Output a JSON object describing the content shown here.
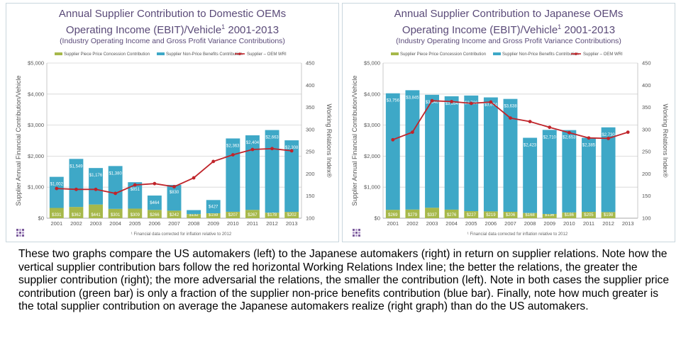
{
  "caption": "These two graphs compare the US automakers (left) to the Japanese automakers (right) in return on supplier relations. Note how the vertical supplier contribution bars follow the red horizontal Working Relations Index line; the better the relations, the greater the supplier contribution (right); the more adversarial the relations, the smaller the contribution (left).  Note in both cases the supplier price contribution (green bar) is only a fraction of the supplier non-price benefits contribution (blue bar).  Finally, note how much greater is the total supplier contribution on average the Japanese automakers realize (right graph) than do the US automakers.",
  "colors": {
    "price_bar": "#a6b84a",
    "nonprice_bar": "#3ea8c7",
    "wri_line": "#c0242a",
    "title": "#5a4a78",
    "grid": "#d4d4d4"
  },
  "chart_data": [
    {
      "type": "bar",
      "title": "Annual Supplier Contribution to Domestic OEMs",
      "title2": "Operating Income (EBIT)/Vehicle",
      "title2_sup": "1",
      "title2_years": "2001-2013",
      "subtitle": "(Industry Operating Income and Gross Profit Variance Contributions)",
      "legend": [
        "Supplier Piece Price Concession Contribution",
        "Supplier Non-Price Benefits Contribution",
        "Supplier – OEM WRI"
      ],
      "ylabel": "Supplier Annual Financial Contribution/Vehicle",
      "y2label": "Working Relations Index®",
      "footnote": "¹ Financial data corrected for inflation relative to 2012",
      "ylim": [
        0,
        5000
      ],
      "y2lim": [
        100,
        450
      ],
      "yticks": [
        "$0",
        "$1,000",
        "$2,000",
        "$3,000",
        "$4,000",
        "$5,000"
      ],
      "y2ticks": [
        "100",
        "150",
        "200",
        "250",
        "300",
        "350",
        "400",
        "450"
      ],
      "categories": [
        "2001",
        "2002",
        "2003",
        "2004",
        "2005",
        "2006",
        "2007",
        "2008",
        "2009",
        "2010",
        "2011",
        "2012",
        "2013"
      ],
      "series": [
        {
          "name": "Supplier Piece Price Concession Contribution",
          "values": [
            331,
            362,
            441,
            301,
            309,
            266,
            242,
            132,
            159,
            207,
            267,
            178,
            202
          ],
          "labels": [
            "$331",
            "$362",
            "$441",
            "$301",
            "$309",
            "$266",
            "$242",
            "$132",
            "$159",
            "$207",
            "$267",
            "$178",
            "$202"
          ]
        },
        {
          "name": "Supplier Non-Price Benefits Contribution",
          "values": [
            1002,
            1549,
            1176,
            1380,
            851,
            464,
            830,
            129,
            427,
            2363,
            2404,
            2663,
            2308
          ],
          "labels": [
            "$1,002",
            "$1,549",
            "$1,176",
            "$1,380",
            "$851",
            "$464",
            "$830",
            "$129",
            "$427",
            "$2,363",
            "$2,404",
            "$2,663",
            "$2,308"
          ]
        },
        {
          "name": "Supplier – OEM WRI",
          "values": [
            167,
            165,
            165,
            156,
            175,
            178,
            171,
            191,
            228,
            243,
            255,
            257,
            252
          ]
        }
      ]
    },
    {
      "type": "bar",
      "title": "Annual Supplier Contribution to Japanese OEMs",
      "title2": "Operating Income (EBIT)/Vehicle",
      "title2_sup": "1",
      "title2_years": "2001-2013",
      "subtitle": "(Industry Operating Income and Gross Profit Variance Contributions)",
      "legend": [
        "Supplier Piece Price Concession Contribution",
        "Supplier Non-Price Benefits Contribution",
        "Supplier – OEM WRI"
      ],
      "ylabel": "Supplier Annual Financial Contribution/Vehicle",
      "y2label": "Working Relations Index®",
      "footnote": "¹ Financial data corrected for inflation relative to 2012",
      "ylim": [
        0,
        5000
      ],
      "y2lim": [
        100,
        450
      ],
      "yticks": [
        "$0",
        "$1,000",
        "$2,000",
        "$3,000",
        "$4,000",
        "$5,000"
      ],
      "y2ticks": [
        "100",
        "150",
        "200",
        "250",
        "300",
        "350",
        "400",
        "450"
      ],
      "categories": [
        "2001",
        "2002",
        "2003",
        "2004",
        "2005",
        "2006",
        "2007",
        "2008",
        "2009",
        "2010",
        "2011",
        "2012",
        "2013"
      ],
      "series": [
        {
          "name": "Supplier Piece Price Concession Contribution",
          "values": [
            269,
            279,
            337,
            276,
            227,
            219,
            206,
            168,
            136,
            186,
            205,
            198,
            null
          ],
          "labels": [
            "$269",
            "$279",
            "$337",
            "$276",
            "$227",
            "$219",
            "$206",
            "$168",
            "$136",
            "$186",
            "$205",
            "$198",
            ""
          ]
        },
        {
          "name": "Supplier Non-Price Benefits Contribution",
          "values": [
            3756,
            3845,
            3640,
            3654,
            3726,
            3674,
            3638,
            2423,
            2710,
            2653,
            2385,
            2730,
            null
          ],
          "labels": [
            "$3,756",
            "$3,845",
            "$3,640",
            "$3,654",
            "$3,726",
            "$3,674",
            "$3,638",
            "$2,423",
            "$2,710",
            "$2,653",
            "$2,385",
            "$2,730",
            ""
          ]
        },
        {
          "name": "Supplier – OEM WRI",
          "values": [
            277,
            294,
            365,
            363,
            359,
            362,
            326,
            318,
            305,
            293,
            281,
            280,
            294
          ]
        }
      ]
    }
  ]
}
